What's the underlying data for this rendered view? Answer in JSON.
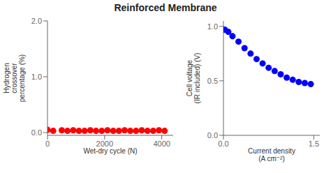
{
  "title": "Reinforced Membrane",
  "chart_data": [
    {
      "type": "scatter",
      "xlabel": "Wet-dry cycle (N)",
      "ylabel": "Hydrogen\ncrossover\npercentage (%)",
      "xlim": [
        0,
        4400
      ],
      "ylim": [
        -0.05,
        2.0
      ],
      "xticks": [
        0,
        2000,
        4000
      ],
      "yticks": [
        {
          "value": 0.0,
          "label": "0.0"
        },
        {
          "value": 1.0,
          "label": "1.0"
        },
        {
          "value": 2.0,
          "label": "2.0"
        }
      ],
      "x": [
        0,
        200,
        500,
        700,
        900,
        1100,
        1300,
        1500,
        1700,
        1900,
        2100,
        2300,
        2500,
        2700,
        2900,
        3100,
        3300,
        3500,
        3700,
        3900,
        4100
      ],
      "values": [
        0.05,
        0.03,
        0.04,
        0.03,
        0.04,
        0.03,
        0.03,
        0.04,
        0.03,
        0.03,
        0.04,
        0.03,
        0.03,
        0.04,
        0.03,
        0.03,
        0.04,
        0.03,
        0.03,
        0.04,
        0.03
      ],
      "color": "red",
      "grid": false
    },
    {
      "type": "scatter",
      "xlabel": "Current density\n(A cm⁻²)",
      "ylabel": "Cell voltage\n(IR included) (V)",
      "xlim": [
        0,
        1.6
      ],
      "ylim": [
        0,
        1.05
      ],
      "xticks": [
        {
          "value": 0,
          "label": "0.0"
        },
        {
          "value": 1.5,
          "label": "1.5"
        }
      ],
      "yticks": [
        {
          "value": 0,
          "label": "0.0"
        },
        {
          "value": 0.5,
          "label": "0.5"
        },
        {
          "value": 1.0,
          "label": "1.0"
        }
      ],
      "x": [
        0.02,
        0.08,
        0.15,
        0.25,
        0.35,
        0.45,
        0.55,
        0.65,
        0.75,
        0.85,
        0.95,
        1.05,
        1.15,
        1.25,
        1.35,
        1.45
      ],
      "values": [
        0.97,
        0.95,
        0.91,
        0.86,
        0.8,
        0.75,
        0.7,
        0.66,
        0.62,
        0.59,
        0.56,
        0.53,
        0.51,
        0.49,
        0.48,
        0.47
      ],
      "color": "blue",
      "grid": false
    }
  ]
}
